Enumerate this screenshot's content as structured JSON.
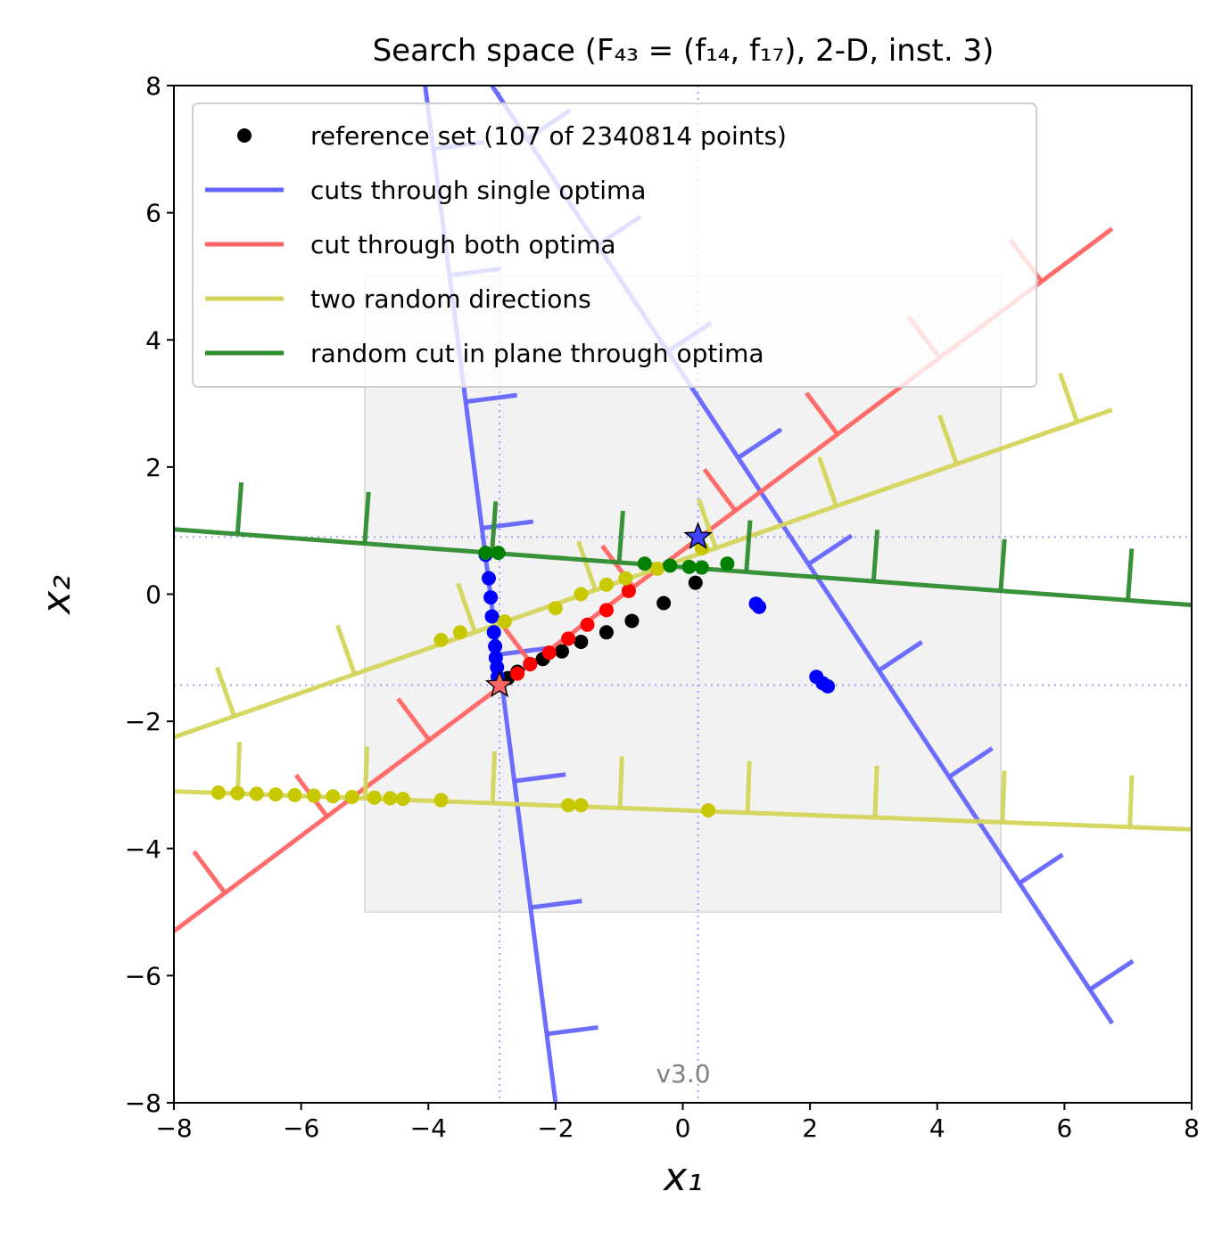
{
  "chart_data": {
    "type": "line",
    "title": "Search space (F₄₃ = (f₁₄, f₁₇), 2-D, inst. 3)",
    "xlabel": "x₁",
    "ylabel": "x₂",
    "xlim": [
      -8,
      8
    ],
    "ylim": [
      -8,
      8
    ],
    "xticks": [
      "−8",
      "−6",
      "−4",
      "−2",
      "0",
      "2",
      "4",
      "6",
      "8"
    ],
    "yticks": [
      "−8",
      "−6",
      "−4",
      "−2",
      "0",
      "2",
      "4",
      "6",
      "8"
    ],
    "version_label": "v3.0",
    "region_of_interest": {
      "x": [
        -5,
        5
      ],
      "y": [
        -5,
        5
      ],
      "color": "#f2f2f2"
    },
    "optima": [
      {
        "x": -2.88,
        "y": -1.43,
        "color": "#ff6666"
      },
      {
        "x": 0.24,
        "y": 0.9,
        "color": "#4040ff"
      }
    ],
    "guide_lines": {
      "x": [
        -2.88,
        0.24
      ],
      "y": [
        -1.43,
        0.9
      ],
      "color": "#a0a0ff"
    },
    "legend": {
      "placement": "upper-left",
      "entries": [
        {
          "label": "reference set (107 of 2340814 points)",
          "kind": "marker",
          "color": "#000000"
        },
        {
          "label": "cuts through single optima",
          "kind": "line",
          "color": "#6464ff"
        },
        {
          "label": "cut through both optima",
          "kind": "line",
          "color": "#ff6464"
        },
        {
          "label": "two random directions",
          "kind": "line",
          "color": "#d4d45a"
        },
        {
          "label": "random cut in plane through optima",
          "kind": "line",
          "color": "#2e8b2e"
        }
      ]
    },
    "series": [
      {
        "name": "cuts through single optima",
        "color": "#6464ff",
        "lines": [
          {
            "x": [
              -4.05,
              -2.0
            ],
            "y": [
              8.0,
              -8.0
            ]
          },
          {
            "x": [
              -3.0,
              6.75
            ],
            "y": [
              8.0,
              -6.75
            ]
          }
        ]
      },
      {
        "name": "cut through both optima",
        "color": "#ff6464",
        "lines": [
          {
            "x": [
              -8.0,
              6.75
            ],
            "y": [
              -5.3,
              5.75
            ]
          }
        ]
      },
      {
        "name": "two random directions",
        "color": "#d4d45a",
        "lines": [
          {
            "x": [
              -8.0,
              6.75
            ],
            "y": [
              -2.25,
              2.9
            ]
          },
          {
            "x": [
              -8.0,
              8.0
            ],
            "y": [
              -3.1,
              -3.7
            ]
          }
        ]
      },
      {
        "name": "random cut in plane through optima",
        "color": "#2e8b2e",
        "lines": [
          {
            "x": [
              -8.0,
              8.0
            ],
            "y": [
              1.02,
              -0.17
            ]
          }
        ]
      }
    ],
    "points": [
      {
        "color": "#000000",
        "x": [
          0.2,
          -0.3,
          -0.8,
          -1.2,
          -1.6,
          -1.9,
          -2.2,
          -2.4,
          -2.6,
          -2.75
        ],
        "y": [
          0.18,
          -0.14,
          -0.42,
          -0.6,
          -0.75,
          -0.9,
          -1.02,
          -1.1,
          -1.22,
          -1.32
        ]
      },
      {
        "color": "#ff0000",
        "x": [
          -0.85,
          -1.2,
          -1.5,
          -1.8,
          -2.1,
          -2.4,
          -2.6
        ],
        "y": [
          0.05,
          -0.25,
          -0.48,
          -0.7,
          -0.92,
          -1.1,
          -1.25
        ]
      },
      {
        "color": "#0000ff",
        "x": [
          -3.1,
          -3.05,
          -3.02,
          -3.0,
          -2.97,
          -2.95,
          -2.94,
          -2.92,
          -2.91,
          1.15,
          1.2,
          2.1,
          2.2,
          2.28
        ],
        "y": [
          0.62,
          0.25,
          -0.05,
          -0.35,
          -0.6,
          -0.82,
          -1.0,
          -1.15,
          -1.3,
          -0.15,
          -0.2,
          -1.3,
          -1.4,
          -1.45
        ]
      },
      {
        "color": "#c8c800",
        "x": [
          -7.3,
          -7.0,
          -6.7,
          -6.4,
          -6.1,
          -5.8,
          -5.5,
          -5.2,
          -4.85,
          -4.6,
          -4.4,
          -3.8,
          -1.8,
          -1.6,
          -2.8,
          -3.5,
          -3.8,
          -2.0,
          -1.6,
          -1.2,
          -0.9,
          -0.4,
          0.3,
          0.4
        ],
        "y": [
          -3.12,
          -3.13,
          -3.14,
          -3.15,
          -3.16,
          -3.17,
          -3.18,
          -3.19,
          -3.2,
          -3.21,
          -3.22,
          -3.24,
          -3.32,
          -3.32,
          -0.43,
          -0.6,
          -0.72,
          -0.22,
          0.0,
          0.15,
          0.25,
          0.4,
          0.72,
          -3.4
        ]
      },
      {
        "color": "#008000",
        "x": [
          -3.1,
          -2.9,
          0.7,
          -0.6,
          -0.2,
          0.1,
          0.3
        ],
        "y": [
          0.65,
          0.65,
          0.48,
          0.48,
          0.45,
          0.43,
          0.42
        ]
      }
    ]
  }
}
